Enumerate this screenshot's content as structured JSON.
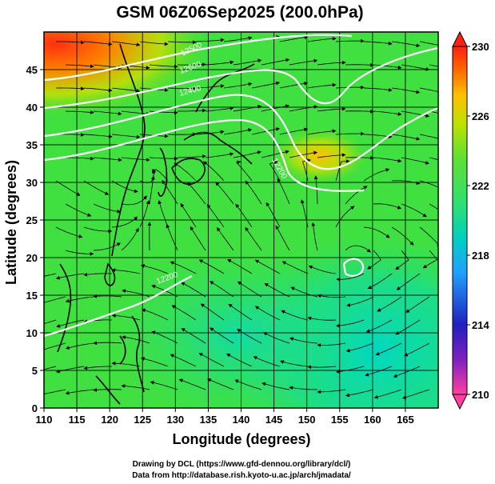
{
  "title": "GSM 06Z06Sep2025 (200.0hPa)",
  "x_axis": {
    "label": "Longitude (degrees)",
    "min": 110,
    "max": 170,
    "ticks": [
      "110",
      "115",
      "120",
      "125",
      "130",
      "135",
      "140",
      "145",
      "150",
      "155",
      "160",
      "165"
    ]
  },
  "y_axis": {
    "label": "Latitude  (degrees)",
    "min": 0,
    "max": 50,
    "ticks": [
      "0",
      "5",
      "10",
      "15",
      "20",
      "25",
      "30",
      "35",
      "40",
      "45"
    ]
  },
  "colorbar": {
    "min": 210,
    "max": 230,
    "labels": [
      "230",
      "226",
      "222",
      "218",
      "214",
      "210"
    ],
    "stops": [
      "#ff3f7f",
      "#c020c0",
      "#2020c0",
      "#2080ff",
      "#00c0c0",
      "#00e090",
      "#40e040",
      "#80e020",
      "#c0e000",
      "#ffd000",
      "#ff8000",
      "#ff2000"
    ]
  },
  "contours": {
    "labels": [
      "12200",
      "12400",
      "12500",
      "12600",
      "12200"
    ]
  },
  "credits": {
    "line1": "Drawing by DCL (https://www.gfd-dennou.org/library/dcl/)",
    "line2": "Data from http://database.rish.kyoto-u.ac.jp/arch/jmadata/"
  }
}
